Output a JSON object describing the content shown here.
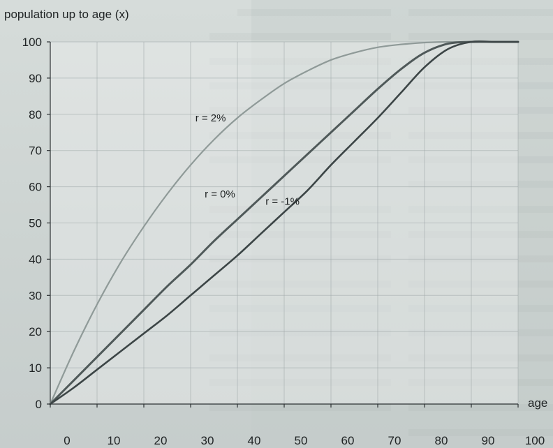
{
  "chart_data": {
    "type": "line",
    "title": "",
    "xlabel": "age",
    "ylabel": "population up to age (x)",
    "xlim": [
      0,
      100
    ],
    "ylim": [
      0,
      100
    ],
    "xticks": [
      0,
      10,
      20,
      30,
      40,
      50,
      60,
      70,
      80,
      90,
      100
    ],
    "yticks": [
      0,
      10,
      20,
      30,
      40,
      50,
      60,
      70,
      80,
      90,
      100
    ],
    "grid": true,
    "legend": "none",
    "series": [
      {
        "name": "r = 2%",
        "color": "#8f9a98",
        "x": [
          0,
          5,
          10,
          15,
          20,
          25,
          30,
          35,
          40,
          45,
          50,
          55,
          60,
          65,
          70,
          75,
          80,
          85,
          90,
          95,
          100
        ],
        "y": [
          0,
          14.5,
          27.5,
          39,
          49,
          58,
          66,
          73,
          79,
          84,
          88.5,
          92,
          95,
          97,
          98.5,
          99.3,
          99.8,
          100,
          100,
          100,
          100
        ]
      },
      {
        "name": "r = 0%",
        "color": "#4f5959",
        "x": [
          0,
          5,
          10,
          15,
          20,
          25,
          30,
          35,
          40,
          45,
          50,
          55,
          60,
          65,
          70,
          75,
          80,
          85,
          90,
          95,
          100
        ],
        "y": [
          0,
          6.5,
          13,
          19.5,
          26,
          32.5,
          38.5,
          45,
          51,
          57,
          63,
          69,
          75,
          81,
          87,
          92.5,
          97,
          99.5,
          100,
          100,
          100
        ]
      },
      {
        "name": "r = -1%",
        "color": "#3c4546",
        "x": [
          0,
          5,
          10,
          15,
          20,
          25,
          30,
          35,
          40,
          45,
          50,
          55,
          60,
          65,
          70,
          75,
          80,
          85,
          90,
          95,
          100
        ],
        "y": [
          0,
          4.5,
          9.5,
          14.5,
          19.5,
          24.5,
          30,
          35.5,
          41,
          47,
          53,
          59,
          66,
          72.5,
          79,
          86,
          93,
          98,
          100,
          100,
          100
        ]
      }
    ],
    "annotations": [
      {
        "text": "r = 2%",
        "x": 31,
        "y": 78
      },
      {
        "text": "r = 0%",
        "x": 33,
        "y": 57
      },
      {
        "text": "r = -1%",
        "x": 46,
        "y": 55
      }
    ]
  }
}
